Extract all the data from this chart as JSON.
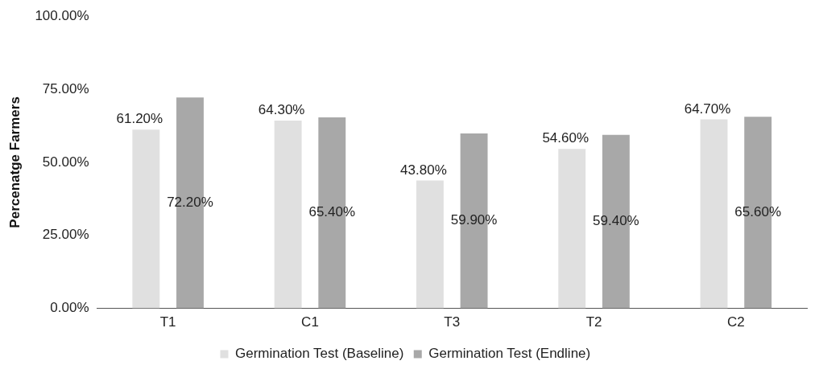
{
  "chart_data": {
    "type": "bar",
    "ylabel": "Percenatge Farmers",
    "categories": [
      "T1",
      "C1",
      "T3",
      "T2",
      "C2"
    ],
    "series": [
      {
        "name": "Germination Test (Baseline)",
        "color": "#e0e0e0",
        "values": [
          61.2,
          64.3,
          43.8,
          54.6,
          64.7
        ],
        "value_labels": [
          "61.20%",
          "64.30%",
          "43.80%",
          "54.60%",
          "64.70%"
        ]
      },
      {
        "name": "Germination Test (Endline)",
        "color": "#a8a8a8",
        "values": [
          72.2,
          65.4,
          59.9,
          59.4,
          65.6
        ],
        "value_labels": [
          "72.20%",
          "65.40%",
          "59.90%",
          "59.40%",
          "65.60%"
        ]
      }
    ],
    "ylim": [
      0,
      100
    ],
    "yticks": [
      {
        "value": 0,
        "label": "0.00%"
      },
      {
        "value": 25,
        "label": "25.00%"
      },
      {
        "value": 50,
        "label": "50.00%"
      },
      {
        "value": 75,
        "label": "75.00%"
      },
      {
        "value": 100,
        "label": "100.00%"
      }
    ],
    "grid": false,
    "legend": "bottom"
  }
}
